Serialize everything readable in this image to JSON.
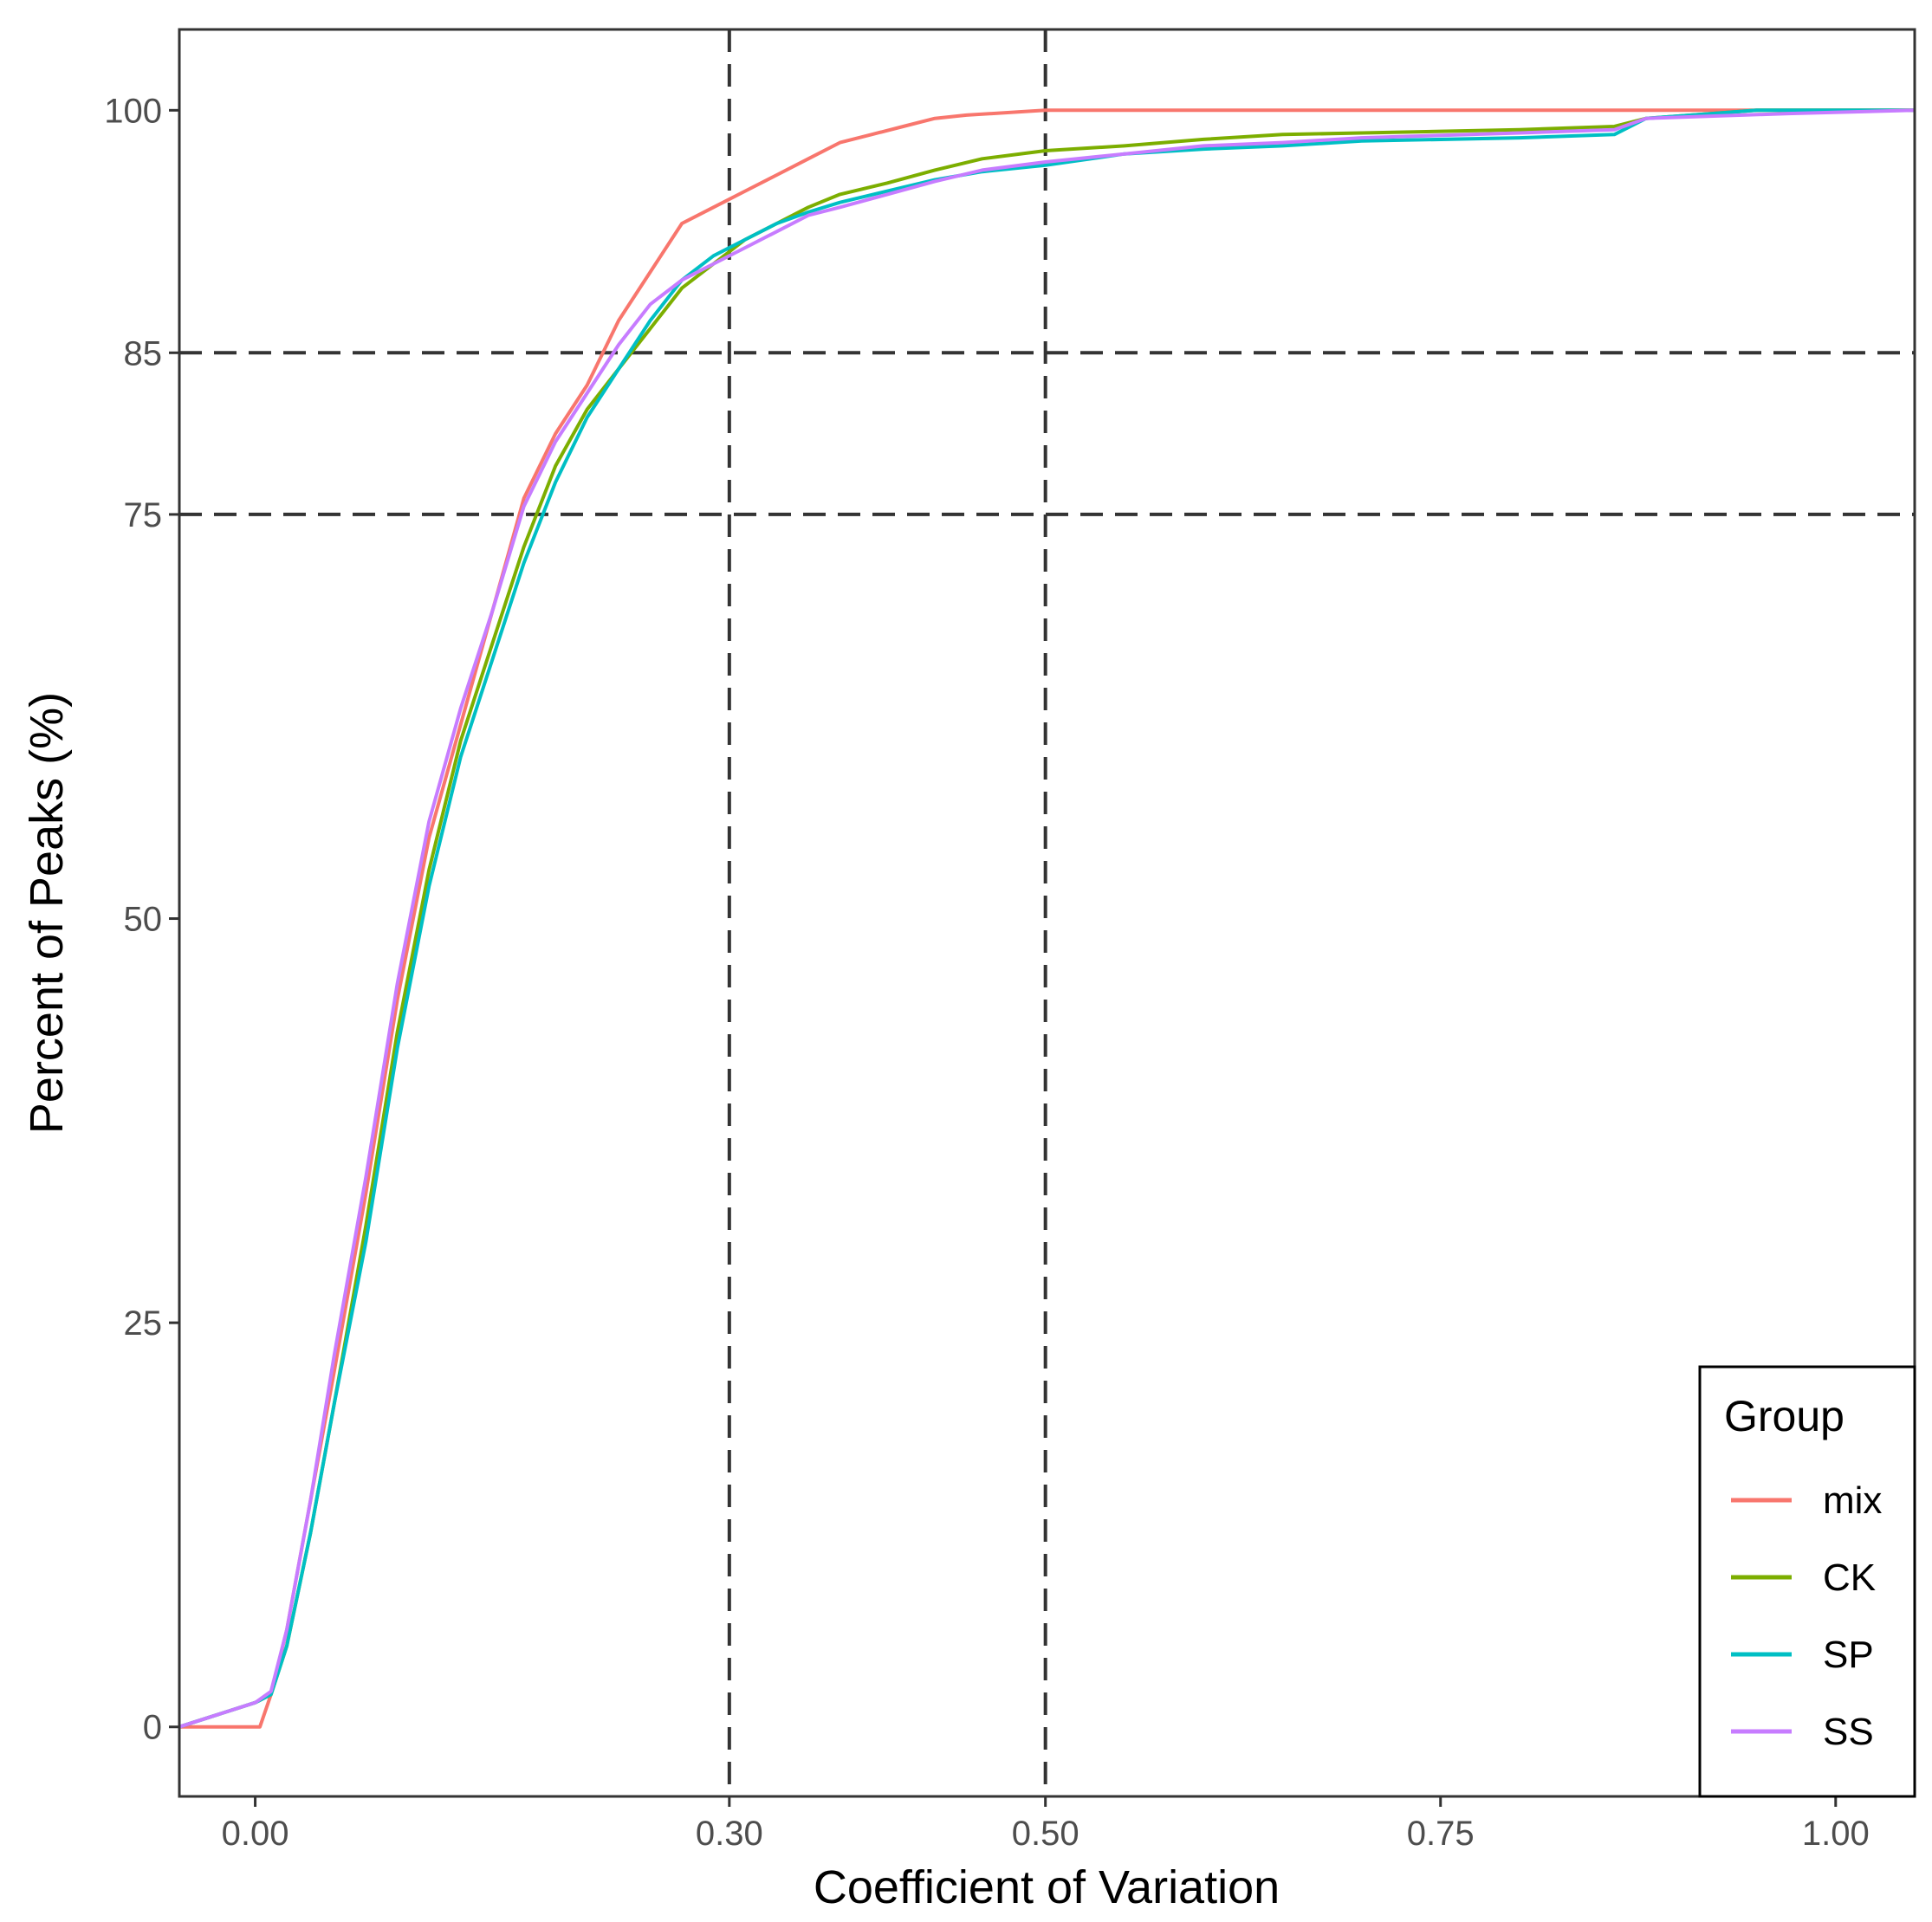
{
  "chart_data": {
    "type": "line",
    "xlabel": "Coefficient of Variation",
    "ylabel": "Percent of Peaks (%)",
    "xlim": [
      -0.048,
      1.05
    ],
    "ylim": [
      -4.3,
      105
    ],
    "x_ticks": [
      0.0,
      0.3,
      0.5,
      0.75,
      1.0
    ],
    "x_tick_labels": [
      "0.00",
      "0.30",
      "0.50",
      "0.75",
      "1.00"
    ],
    "y_ticks": [
      0,
      25,
      50,
      75,
      85,
      100
    ],
    "y_tick_labels": [
      "0",
      "25",
      "50",
      "75",
      "85",
      "100"
    ],
    "reference_lines": {
      "vertical": [
        0.3,
        0.5
      ],
      "horizontal": [
        75,
        85
      ],
      "style": "dashed"
    },
    "grid": false,
    "legend": {
      "title": "Group",
      "position": "bottom-right"
    },
    "series": [
      {
        "name": "mix",
        "color": "#F8766D",
        "points": [
          [
            -0.048,
            0
          ],
          [
            0.0,
            0
          ],
          [
            0.003,
            0
          ],
          [
            0.01,
            2
          ],
          [
            0.02,
            6
          ],
          [
            0.035,
            14
          ],
          [
            0.05,
            22
          ],
          [
            0.07,
            33
          ],
          [
            0.09,
            45
          ],
          [
            0.11,
            55
          ],
          [
            0.13,
            62
          ],
          [
            0.15,
            69
          ],
          [
            0.17,
            76
          ],
          [
            0.19,
            80
          ],
          [
            0.21,
            83
          ],
          [
            0.23,
            87
          ],
          [
            0.25,
            90
          ],
          [
            0.27,
            93
          ],
          [
            0.29,
            94
          ],
          [
            0.31,
            95
          ],
          [
            0.33,
            96
          ],
          [
            0.35,
            97
          ],
          [
            0.37,
            98
          ],
          [
            0.39,
            98.5
          ],
          [
            0.41,
            99
          ],
          [
            0.43,
            99.5
          ],
          [
            0.45,
            99.7
          ],
          [
            0.5,
            100
          ],
          [
            1.05,
            100
          ]
        ]
      },
      {
        "name": "CK",
        "color": "#7CAE00",
        "points": [
          [
            -0.048,
            0
          ],
          [
            0.0,
            1.5
          ],
          [
            0.01,
            2
          ],
          [
            0.02,
            5
          ],
          [
            0.035,
            12
          ],
          [
            0.05,
            20
          ],
          [
            0.07,
            31
          ],
          [
            0.09,
            43
          ],
          [
            0.11,
            53
          ],
          [
            0.13,
            61
          ],
          [
            0.15,
            67
          ],
          [
            0.17,
            73
          ],
          [
            0.19,
            78
          ],
          [
            0.21,
            81.5
          ],
          [
            0.23,
            84
          ],
          [
            0.25,
            86.5
          ],
          [
            0.27,
            89
          ],
          [
            0.29,
            90.5
          ],
          [
            0.31,
            92
          ],
          [
            0.33,
            93
          ],
          [
            0.35,
            94
          ],
          [
            0.37,
            94.8
          ],
          [
            0.4,
            95.5
          ],
          [
            0.43,
            96.3
          ],
          [
            0.46,
            97
          ],
          [
            0.5,
            97.5
          ],
          [
            0.55,
            97.8
          ],
          [
            0.6,
            98.2
          ],
          [
            0.65,
            98.5
          ],
          [
            0.7,
            98.6
          ],
          [
            0.8,
            98.8
          ],
          [
            0.86,
            99
          ],
          [
            0.88,
            99.5
          ],
          [
            0.95,
            100
          ],
          [
            1.05,
            100
          ]
        ]
      },
      {
        "name": "SP",
        "color": "#00BFC4",
        "points": [
          [
            -0.048,
            0
          ],
          [
            0.0,
            1.5
          ],
          [
            0.01,
            2
          ],
          [
            0.02,
            5
          ],
          [
            0.035,
            12
          ],
          [
            0.05,
            20
          ],
          [
            0.07,
            30
          ],
          [
            0.09,
            42
          ],
          [
            0.11,
            52
          ],
          [
            0.13,
            60
          ],
          [
            0.15,
            66
          ],
          [
            0.17,
            72
          ],
          [
            0.19,
            77
          ],
          [
            0.21,
            81
          ],
          [
            0.23,
            84
          ],
          [
            0.25,
            87
          ],
          [
            0.27,
            89.5
          ],
          [
            0.29,
            91
          ],
          [
            0.31,
            92
          ],
          [
            0.33,
            93
          ],
          [
            0.35,
            93.7
          ],
          [
            0.37,
            94.3
          ],
          [
            0.4,
            95
          ],
          [
            0.43,
            95.7
          ],
          [
            0.46,
            96.2
          ],
          [
            0.5,
            96.6
          ],
          [
            0.55,
            97.3
          ],
          [
            0.6,
            97.6
          ],
          [
            0.65,
            97.8
          ],
          [
            0.7,
            98.1
          ],
          [
            0.8,
            98.3
          ],
          [
            0.86,
            98.5
          ],
          [
            0.88,
            99.5
          ],
          [
            0.95,
            100
          ],
          [
            1.05,
            100
          ]
        ]
      },
      {
        "name": "SS",
        "color": "#C77CFF",
        "points": [
          [
            -0.048,
            0
          ],
          [
            0.0,
            1.5
          ],
          [
            0.01,
            2.2
          ],
          [
            0.02,
            6
          ],
          [
            0.035,
            14
          ],
          [
            0.05,
            23
          ],
          [
            0.07,
            34
          ],
          [
            0.09,
            46
          ],
          [
            0.11,
            56
          ],
          [
            0.13,
            63
          ],
          [
            0.15,
            69
          ],
          [
            0.17,
            75.5
          ],
          [
            0.19,
            79.5
          ],
          [
            0.21,
            82.5
          ],
          [
            0.23,
            85.5
          ],
          [
            0.25,
            88
          ],
          [
            0.27,
            89.5
          ],
          [
            0.29,
            90.5
          ],
          [
            0.31,
            91.5
          ],
          [
            0.33,
            92.5
          ],
          [
            0.35,
            93.5
          ],
          [
            0.37,
            94
          ],
          [
            0.4,
            94.8
          ],
          [
            0.43,
            95.6
          ],
          [
            0.46,
            96.3
          ],
          [
            0.5,
            96.8
          ],
          [
            0.55,
            97.3
          ],
          [
            0.6,
            97.8
          ],
          [
            0.65,
            98
          ],
          [
            0.7,
            98.3
          ],
          [
            0.8,
            98.6
          ],
          [
            0.86,
            98.8
          ],
          [
            0.88,
            99.5
          ],
          [
            0.97,
            99.8
          ],
          [
            1.05,
            100
          ]
        ]
      }
    ]
  }
}
